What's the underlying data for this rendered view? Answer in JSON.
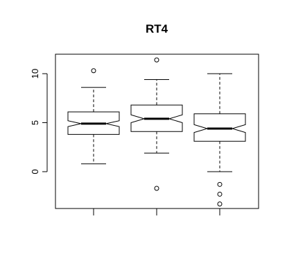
{
  "chart_data": {
    "type": "boxplot",
    "title": "RT4",
    "xlabel": "",
    "ylabel": "",
    "ylim": [
      -3.8,
      12.2
    ],
    "y_ticks": [
      0,
      5,
      10
    ],
    "x_ticks": [
      1,
      2,
      3
    ],
    "notched": true,
    "grid": false,
    "boxes": [
      {
        "position": 1,
        "whisker_low": 0.8,
        "q1": 3.8,
        "median": 4.9,
        "q3": 6.1,
        "whisker_high": 8.6,
        "notch_low": 4.6,
        "notch_high": 5.2,
        "outliers": [
          10.3
        ]
      },
      {
        "position": 2,
        "whisker_low": 1.9,
        "q1": 4.1,
        "median": 5.4,
        "q3": 6.8,
        "whisker_high": 9.4,
        "notch_low": 5.0,
        "notch_high": 5.8,
        "outliers": [
          11.4,
          -1.7
        ]
      },
      {
        "position": 3,
        "whisker_low": 0.0,
        "q1": 3.1,
        "median": 4.4,
        "q3": 5.9,
        "whisker_high": 10.0,
        "notch_low": 4.0,
        "notch_high": 4.8,
        "outliers": [
          -1.3,
          -2.3,
          -3.3
        ]
      }
    ]
  }
}
